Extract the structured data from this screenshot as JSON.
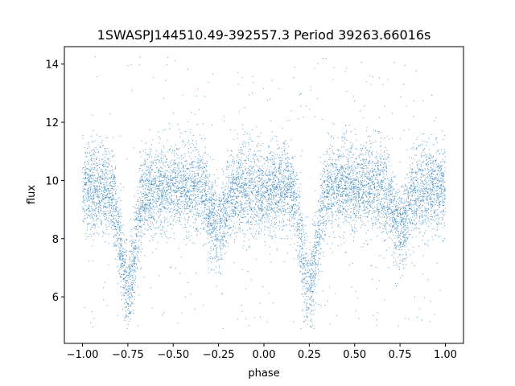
{
  "chart_data": {
    "type": "scatter",
    "title": "1SWASPJ144510.49-392557.3 Period 39263.66016s",
    "xlabel": "phase",
    "ylabel": "flux",
    "xlim": [
      -1.1,
      1.1
    ],
    "ylim": [
      4.4,
      14.6
    ],
    "xticks": [
      -1.0,
      -0.75,
      -0.5,
      -0.25,
      0.0,
      0.25,
      0.5,
      0.75,
      1.0
    ],
    "xtick_labels": [
      "−1.00",
      "−0.75",
      "−0.50",
      "−0.25",
      "0.00",
      "0.25",
      "0.50",
      "0.75",
      "1.00"
    ],
    "yticks": [
      6,
      8,
      10,
      12,
      14
    ],
    "ytick_labels": [
      "6",
      "8",
      "10",
      "12",
      "14"
    ],
    "grid": false,
    "legend": "none",
    "marker_color": "#1f77b4",
    "series": [
      {
        "phase_range": [
          -1.0,
          1.0
        ],
        "flux_clip": [
          4.9,
          14.3
        ],
        "baseline_flux": 9.75,
        "scatter_sigma": 0.75,
        "eclipses": [
          {
            "phase": -0.75,
            "min_flux": 6.3
          },
          {
            "phase": -0.25,
            "min_flux": 8.4
          },
          {
            "phase": 0.25,
            "min_flux": 6.3
          },
          {
            "phase": 0.75,
            "min_flux": 8.4
          }
        ],
        "points": [
          {
            "x": -1.0,
            "y": 9.8
          },
          {
            "x": -0.875,
            "y": 9.7
          },
          {
            "x": -0.8,
            "y": 8.7
          },
          {
            "x": -0.75,
            "y": 6.4
          },
          {
            "x": -0.7,
            "y": 8.7
          },
          {
            "x": -0.625,
            "y": 9.7
          },
          {
            "x": -0.5,
            "y": 9.8
          },
          {
            "x": -0.375,
            "y": 9.7
          },
          {
            "x": -0.3,
            "y": 9.2
          },
          {
            "x": -0.25,
            "y": 8.5
          },
          {
            "x": -0.2,
            "y": 9.2
          },
          {
            "x": -0.125,
            "y": 9.7
          },
          {
            "x": 0.0,
            "y": 9.8
          },
          {
            "x": 0.125,
            "y": 9.7
          },
          {
            "x": 0.2,
            "y": 8.7
          },
          {
            "x": 0.25,
            "y": 6.4
          },
          {
            "x": 0.3,
            "y": 8.7
          },
          {
            "x": 0.375,
            "y": 9.7
          },
          {
            "x": 0.5,
            "y": 9.8
          },
          {
            "x": 0.625,
            "y": 9.7
          },
          {
            "x": 0.7,
            "y": 9.2
          },
          {
            "x": 0.75,
            "y": 8.5
          },
          {
            "x": 0.8,
            "y": 9.2
          },
          {
            "x": 0.875,
            "y": 9.7
          },
          {
            "x": 1.0,
            "y": 9.8
          }
        ]
      }
    ]
  }
}
